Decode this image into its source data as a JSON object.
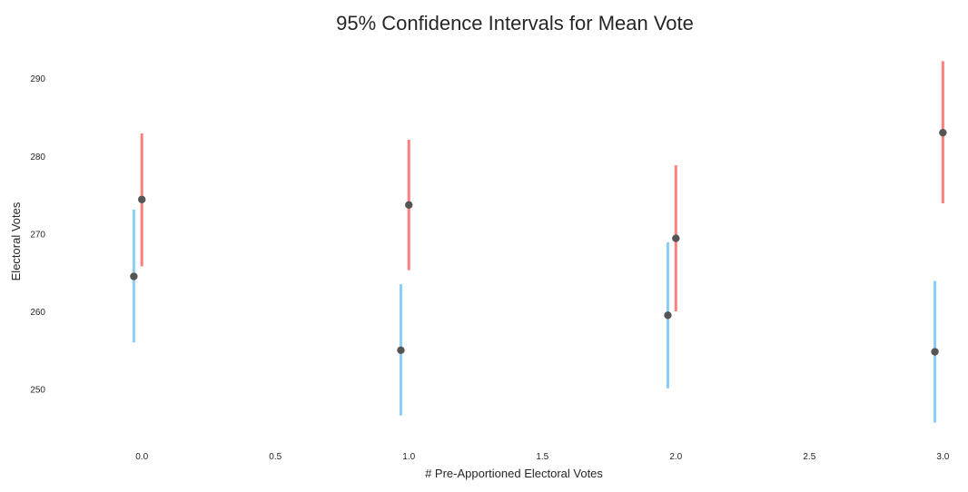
{
  "chart_data": {
    "type": "scatter",
    "title": "95% Confidence Intervals for Mean Vote",
    "xlabel": "# Pre-Apportioned Electoral Votes",
    "ylabel": "Electoral Votes",
    "xlim": [
      -0.3,
      3.06
    ],
    "ylim": [
      244,
      294
    ],
    "xticks": [
      "0.0",
      "0.5",
      "1.0",
      "1.5",
      "2.0",
      "2.5",
      "3.0"
    ],
    "yticks": [
      "250",
      "260",
      "270",
      "280",
      "290"
    ],
    "grid": false,
    "legend": "none",
    "point_color": "#555555",
    "series": [
      {
        "color": "#ff7f7f",
        "x": [
          0,
          1,
          2,
          3
        ],
        "mean": [
          274.4,
          273.7,
          269.4,
          283.0
        ],
        "lower": [
          265.8,
          265.3,
          260.0,
          273.9
        ],
        "upper": [
          282.9,
          282.1,
          278.8,
          292.2
        ]
      },
      {
        "color": "#87cefa",
        "x": [
          -0.03,
          0.97,
          1.97,
          2.97
        ],
        "mean": [
          264.5,
          255.0,
          259.5,
          254.8
        ],
        "lower": [
          256.0,
          246.6,
          250.1,
          245.7
        ],
        "upper": [
          273.1,
          263.5,
          268.9,
          263.9
        ]
      }
    ]
  }
}
